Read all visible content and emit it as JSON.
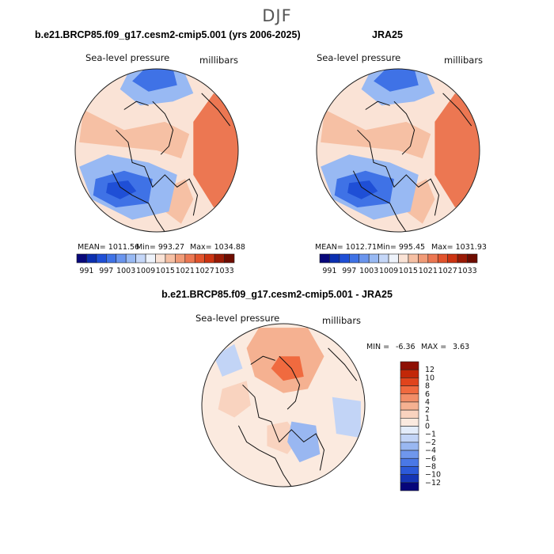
{
  "page": {
    "season": "DJF"
  },
  "panels": [
    {
      "title": "b.e21.BRCP85.f09_g17.cesm2-cmip5.001 (yrs 2006-2025)",
      "variable": "Sea-level pressure",
      "units": "millibars",
      "stats": {
        "mean": "MEAN= 1011.56",
        "min": "Min= 993.27",
        "max": "Max= 1034.88"
      }
    },
    {
      "title": "JRA25",
      "variable": "Sea-level pressure",
      "units": "millibars",
      "stats": {
        "mean": "MEAN= 1012.71",
        "min": "Min= 995.45",
        "max": "Max= 1031.93"
      }
    },
    {
      "title": "b.e21.BRCP85.f09_g17.cesm2-cmip5.001 - JRA25",
      "variable": "Sea-level pressure",
      "units": "millibars",
      "stats": {
        "min": "MIN =",
        "min_value": "-6.36",
        "max": "MAX =",
        "max_value": "3.63"
      }
    }
  ],
  "chart_data": [
    {
      "type": "heatmap",
      "title": "b.e21.BRCP85.f09_g17.cesm2-cmip5.001 (yrs 2006-2025)",
      "projection": "north polar stereographic",
      "variable": "Sea-level pressure",
      "units": "millibars",
      "mean": 1011.56,
      "min": 993.27,
      "max": 1034.88,
      "colorbar": {
        "orientation": "horizontal",
        "labels": [
          991,
          997,
          1003,
          1009,
          1015,
          1021,
          1027,
          1033
        ],
        "colors": [
          "#08087a",
          "#0b2fb0",
          "#1f4fd6",
          "#3f72e6",
          "#6a95ee",
          "#98b9f3",
          "#c5d7f8",
          "#eef3fb",
          "#fae3d6",
          "#f6c0a4",
          "#f19b77",
          "#ec7752",
          "#e2532c",
          "#cc3311",
          "#9a1a05",
          "#6e0c00"
        ]
      }
    },
    {
      "type": "heatmap",
      "title": "JRA25",
      "projection": "north polar stereographic",
      "variable": "Sea-level pressure",
      "units": "millibars",
      "mean": 1012.71,
      "min": 995.45,
      "max": 1031.93,
      "colorbar": {
        "orientation": "horizontal",
        "labels": [
          991,
          997,
          1003,
          1009,
          1015,
          1021,
          1027,
          1033
        ],
        "colors": [
          "#08087a",
          "#0b2fb0",
          "#1f4fd6",
          "#3f72e6",
          "#6a95ee",
          "#98b9f3",
          "#c5d7f8",
          "#eef3fb",
          "#fae3d6",
          "#f6c0a4",
          "#f19b77",
          "#ec7752",
          "#e2532c",
          "#cc3311",
          "#9a1a05",
          "#6e0c00"
        ]
      }
    },
    {
      "type": "heatmap",
      "title": "b.e21.BRCP85.f09_g17.cesm2-cmip5.001 - JRA25",
      "projection": "north polar stereographic",
      "variable": "Sea-level pressure",
      "units": "millibars",
      "min": -6.36,
      "max": 3.63,
      "colorbar": {
        "orientation": "vertical",
        "labels": [
          "12",
          "10",
          "8",
          "6",
          "4",
          "2",
          "1",
          "0",
          "−1",
          "−2",
          "−4",
          "−6",
          "−8",
          "−10",
          "−12"
        ],
        "colors": [
          "#8e1004",
          "#c22708",
          "#e0441c",
          "#f06a3f",
          "#f28e68",
          "#f5b191",
          "#f9d3bf",
          "#fbeadf",
          "#e3ecfa",
          "#c2d4f6",
          "#99b7f1",
          "#6f97ec",
          "#4a78e6",
          "#2c5ad9",
          "#1535b5",
          "#06057a"
        ]
      }
    }
  ]
}
